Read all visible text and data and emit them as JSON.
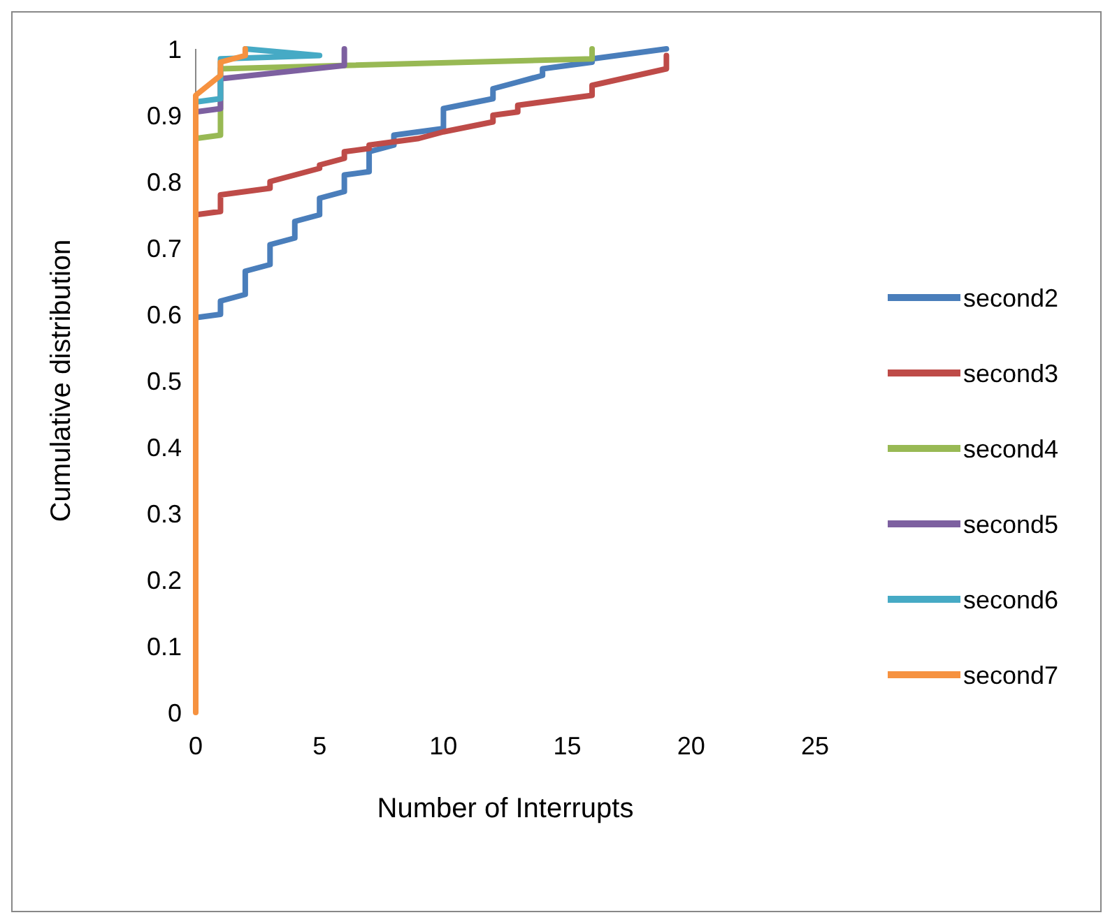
{
  "chart_data": {
    "type": "line",
    "xlabel": "Number of Interrupts",
    "ylabel": "Cumulative distribution",
    "xlim": [
      0,
      25
    ],
    "xticks": [
      0,
      5,
      10,
      15,
      20,
      25
    ],
    "ylim": [
      0,
      1
    ],
    "yticks": [
      0,
      0.1,
      0.2,
      0.3,
      0.4,
      0.5,
      0.6,
      0.7,
      0.8,
      0.9,
      1
    ],
    "grid": false,
    "legend": "right",
    "marker": "none",
    "line_style": "solid",
    "series": [
      {
        "name": "second2",
        "color": "#4a7ebb",
        "x": [
          0,
          1,
          1,
          2,
          2,
          3,
          3,
          4,
          4,
          5,
          5,
          6,
          6,
          7,
          7,
          8,
          8,
          10,
          10,
          12,
          12,
          13,
          14,
          14,
          16,
          16,
          19
        ],
        "values": [
          0.595,
          0.6,
          0.62,
          0.63,
          0.665,
          0.675,
          0.705,
          0.715,
          0.74,
          0.75,
          0.775,
          0.785,
          0.81,
          0.815,
          0.845,
          0.855,
          0.87,
          0.88,
          0.91,
          0.925,
          0.94,
          0.95,
          0.96,
          0.97,
          0.98,
          0.985,
          1
        ]
      },
      {
        "name": "second3",
        "color": "#be4b48",
        "x": [
          0,
          1,
          1,
          3,
          3,
          4,
          5,
          5,
          6,
          6,
          7,
          7,
          9,
          10,
          12,
          12,
          13,
          13,
          16,
          16,
          19,
          19
        ],
        "values": [
          0.75,
          0.755,
          0.78,
          0.79,
          0.8,
          0.81,
          0.82,
          0.825,
          0.835,
          0.845,
          0.85,
          0.855,
          0.865,
          0.875,
          0.89,
          0.9,
          0.905,
          0.915,
          0.93,
          0.945,
          0.97,
          0.99
        ]
      },
      {
        "name": "second4",
        "color": "#98b954",
        "x": [
          0,
          1,
          1,
          16,
          16
        ],
        "values": [
          0.865,
          0.87,
          0.97,
          0.985,
          1
        ]
      },
      {
        "name": "second5",
        "color": "#7d60a0",
        "x": [
          0,
          1,
          1,
          6,
          6
        ],
        "values": [
          0.905,
          0.91,
          0.955,
          0.975,
          1
        ]
      },
      {
        "name": "second6",
        "color": "#46aac5",
        "x": [
          0,
          1,
          1,
          5,
          2
        ],
        "values": [
          0.92,
          0.925,
          0.985,
          0.99,
          1
        ]
      },
      {
        "name": "second7",
        "color": "#f69240",
        "x": [
          0,
          0,
          1,
          1,
          2,
          2
        ],
        "values": [
          0,
          0.93,
          0.96,
          0.98,
          0.99,
          1
        ]
      }
    ]
  }
}
